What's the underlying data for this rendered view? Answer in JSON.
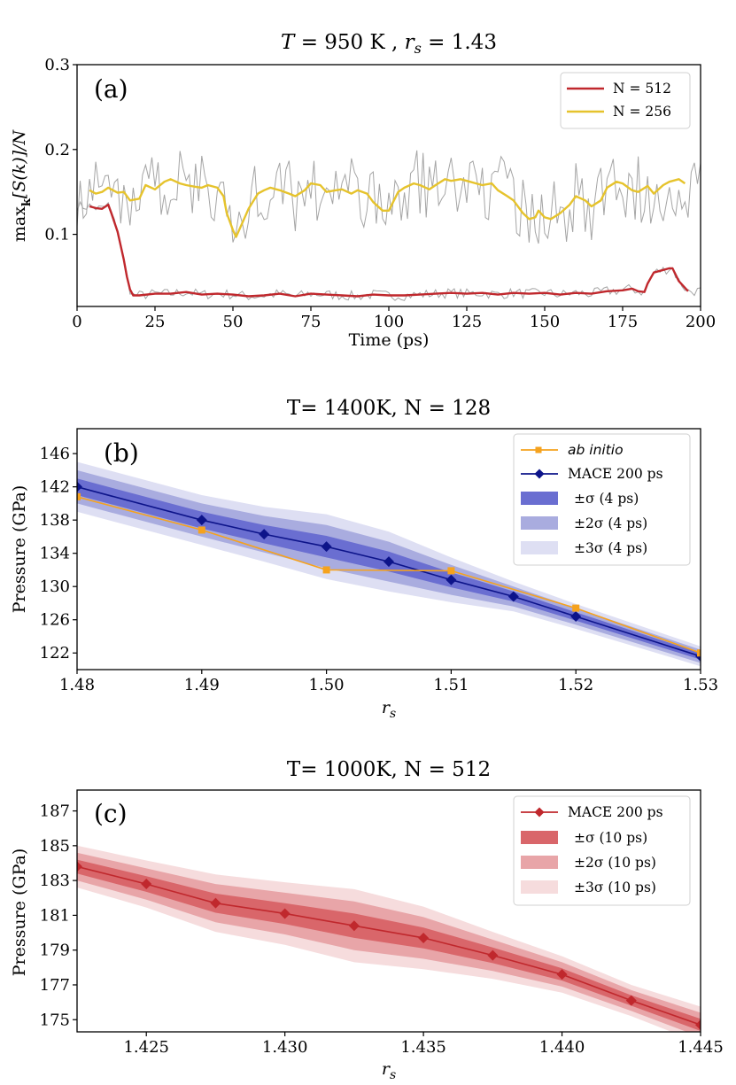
{
  "chart_data": [
    {
      "type": "line",
      "title": "T = 950 K , r_s = 1.43",
      "title_parts": {
        "t": "T",
        "eq1": " = 950 K , ",
        "r": "r",
        "s": "s",
        "eq2": " = 1.43"
      },
      "panel_label": "(a)",
      "xlabel": "Time (ps)",
      "ylabel": "max_k[S(k)]/N",
      "ylabel_parts": {
        "max": "max",
        "sub": "k",
        "rest": "[S(k)]/N"
      },
      "xlim": [
        0,
        200
      ],
      "ylim": [
        0.015,
        0.3
      ],
      "xticks": [
        0,
        25,
        50,
        75,
        100,
        125,
        150,
        175,
        200
      ],
      "yticks": [
        0.1,
        0.2,
        0.3
      ],
      "ytick_labels": [
        "0.1",
        "0.2",
        "0.3"
      ],
      "grid": false,
      "legend_position": "top-right",
      "legend_entries": [
        "N = 512",
        "N = 256"
      ],
      "series": [
        {
          "name": "N = 512",
          "color": "#c0282d",
          "x": [
            4,
            6,
            8,
            10,
            11,
            13,
            15,
            16,
            17,
            18,
            20,
            25,
            30,
            35,
            40,
            45,
            50,
            55,
            60,
            65,
            70,
            75,
            80,
            85,
            90,
            95,
            100,
            105,
            110,
            115,
            120,
            125,
            130,
            135,
            140,
            145,
            150,
            155,
            160,
            165,
            170,
            175,
            178,
            180,
            182,
            183,
            185,
            188,
            190,
            191,
            193,
            196
          ],
          "values": [
            0.133,
            0.131,
            0.13,
            0.135,
            0.125,
            0.103,
            0.07,
            0.05,
            0.035,
            0.028,
            0.028,
            0.03,
            0.03,
            0.032,
            0.029,
            0.03,
            0.029,
            0.027,
            0.028,
            0.03,
            0.027,
            0.03,
            0.029,
            0.028,
            0.027,
            0.029,
            0.028,
            0.028,
            0.029,
            0.03,
            0.031,
            0.03,
            0.031,
            0.029,
            0.031,
            0.03,
            0.031,
            0.029,
            0.031,
            0.03,
            0.033,
            0.034,
            0.036,
            0.033,
            0.032,
            0.042,
            0.055,
            0.058,
            0.06,
            0.06,
            0.045,
            0.033
          ]
        },
        {
          "name": "N = 256",
          "color": "#e6c32c",
          "x": [
            4,
            6,
            8,
            10,
            13,
            15,
            17,
            20,
            22,
            25,
            28,
            30,
            33,
            35,
            38,
            40,
            42,
            45,
            47,
            48,
            50,
            51,
            52,
            55,
            58,
            60,
            62,
            65,
            68,
            70,
            73,
            75,
            78,
            80,
            83,
            85,
            88,
            90,
            93,
            95,
            98,
            100,
            103,
            105,
            108,
            110,
            113,
            115,
            118,
            120,
            123,
            125,
            128,
            130,
            133,
            135,
            138,
            140,
            143,
            145,
            147,
            148,
            150,
            152,
            155,
            158,
            160,
            163,
            165,
            168,
            170,
            173,
            175,
            178,
            180,
            183,
            185,
            188,
            190,
            193,
            195
          ],
          "values": [
            0.152,
            0.148,
            0.15,
            0.155,
            0.149,
            0.15,
            0.14,
            0.142,
            0.158,
            0.153,
            0.162,
            0.165,
            0.16,
            0.158,
            0.156,
            0.155,
            0.158,
            0.155,
            0.145,
            0.125,
            0.105,
            0.097,
            0.105,
            0.13,
            0.148,
            0.152,
            0.155,
            0.152,
            0.148,
            0.145,
            0.152,
            0.16,
            0.158,
            0.15,
            0.152,
            0.153,
            0.148,
            0.152,
            0.148,
            0.138,
            0.128,
            0.128,
            0.15,
            0.155,
            0.16,
            0.158,
            0.153,
            0.158,
            0.165,
            0.163,
            0.165,
            0.163,
            0.16,
            0.158,
            0.16,
            0.152,
            0.145,
            0.14,
            0.125,
            0.118,
            0.12,
            0.128,
            0.12,
            0.118,
            0.125,
            0.135,
            0.145,
            0.14,
            0.133,
            0.14,
            0.155,
            0.162,
            0.16,
            0.152,
            0.15,
            0.157,
            0.148,
            0.158,
            0.162,
            0.165,
            0.16
          ]
        }
      ],
      "raw_color": "#a5a5a5"
    },
    {
      "type": "line",
      "title": "T= 1400K, N = 128",
      "panel_label": "(b)",
      "xlabel": "r_s",
      "xlabel_parts": {
        "r": "r",
        "s": "s"
      },
      "ylabel": "Pressure (GPa)",
      "xlim": [
        1.48,
        1.53
      ],
      "ylim": [
        120,
        149
      ],
      "xticks": [
        1.48,
        1.49,
        1.5,
        1.51,
        1.52,
        1.53
      ],
      "xtick_labels": [
        "1.48",
        "1.49",
        "1.50",
        "1.51",
        "1.52",
        "1.53"
      ],
      "yticks": [
        122,
        126,
        130,
        134,
        138,
        142,
        146
      ],
      "grid": false,
      "legend_position": "top-right",
      "legend_entries": [
        "ab initio",
        "MACE 200 ps",
        "±σ (4 ps)",
        "±2σ (4 ps)",
        "±3σ (4 ps)"
      ],
      "series": [
        {
          "name": "ab initio",
          "color": "#f5a21e",
          "marker": "square",
          "x": [
            1.48,
            1.49,
            1.5,
            1.51,
            1.52,
            1.53
          ],
          "values": [
            140.8,
            136.8,
            132.0,
            131.9,
            127.4,
            122.0
          ]
        },
        {
          "name": "MACE 200 ps",
          "color": "#0d148a",
          "marker": "diamond",
          "x": [
            1.48,
            1.49,
            1.495,
            1.5,
            1.505,
            1.51,
            1.515,
            1.52,
            1.53
          ],
          "values": [
            142.0,
            138.0,
            136.3,
            134.8,
            133.0,
            130.8,
            128.8,
            126.4,
            121.6
          ]
        }
      ],
      "band_sigma": [
        1.0,
        1.0,
        1.1,
        1.3,
        1.2,
        0.9,
        0.6,
        0.5,
        0.4
      ],
      "band_colors": [
        "#6a6ed1",
        "#a9acdf",
        "#dedff3"
      ]
    },
    {
      "type": "line",
      "title": "T= 1000K, N = 512",
      "panel_label": "(c)",
      "xlabel": "r_s",
      "xlabel_parts": {
        "r": "r",
        "s": "s"
      },
      "ylabel": "Pressure (GPa)",
      "xlim": [
        1.4225,
        1.445
      ],
      "ylim": [
        174.3,
        188.2
      ],
      "xticks": [
        1.425,
        1.43,
        1.435,
        1.44,
        1.445
      ],
      "xtick_labels": [
        "1.425",
        "1.430",
        "1.435",
        "1.440",
        "1.445"
      ],
      "yticks": [
        175,
        177,
        179,
        181,
        183,
        185,
        187
      ],
      "grid": false,
      "legend_position": "top-right",
      "legend_entries": [
        "MACE 200 ps",
        "±σ (10 ps)",
        "±2σ (10 ps)",
        "±3σ (10 ps)"
      ],
      "series": [
        {
          "name": "MACE 200 ps",
          "color": "#c0282d",
          "marker": "diamond",
          "x": [
            1.4225,
            1.425,
            1.4275,
            1.43,
            1.4325,
            1.435,
            1.4375,
            1.44,
            1.4425,
            1.445
          ],
          "values": [
            183.8,
            182.8,
            181.7,
            181.1,
            180.4,
            179.7,
            178.7,
            177.6,
            176.1,
            174.7
          ]
        }
      ],
      "band_sigma": [
        0.4,
        0.45,
        0.55,
        0.6,
        0.7,
        0.6,
        0.45,
        0.35,
        0.3,
        0.35
      ],
      "band_colors": [
        "#d9666a",
        "#e8a5a8",
        "#f6dcdd"
      ]
    }
  ]
}
